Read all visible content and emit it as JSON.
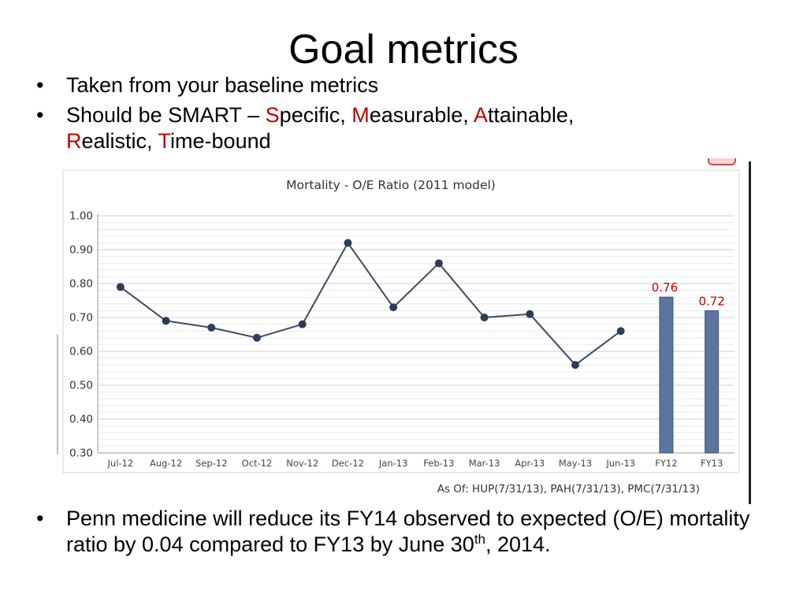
{
  "slide": {
    "title": "Goal metrics",
    "bullet1": "Taken from your baseline metrics",
    "bullet2": {
      "prefix": "Should be SMART – ",
      "s_letter": "S",
      "s_rest": "pecific, ",
      "m_letter": "M",
      "m_rest": "easurable, ",
      "a_letter": "A",
      "a_rest": "ttainable,",
      "r_letter": "R",
      "r_rest": "ealistic, ",
      "t_letter": "T",
      "t_rest": "ime-bound"
    },
    "bullet3": {
      "text": "Penn medicine will reduce its FY14 observed to expected (O/E) mortality ratio by 0.04 compared to FY13 by June 30",
      "sup": "th",
      "tail": ", 2014."
    },
    "accent_color": "#c00000"
  },
  "chart_data": {
    "type": "line",
    "title": "Mortality - O/E Ratio (2011 model)",
    "footnote": "As Of: HUP(7/31/13), PAH(7/31/13), PMC(7/31/13)",
    "categories": [
      "Jul-12",
      "Aug-12",
      "Sep-12",
      "Oct-12",
      "Nov-12",
      "Dec-12",
      "Jan-13",
      "Feb-13",
      "Mar-13",
      "Apr-13",
      "May-13",
      "Jun-13",
      "FY12",
      "FY13"
    ],
    "line_series": {
      "values": [
        0.79,
        0.69,
        0.67,
        0.64,
        0.68,
        0.92,
        0.73,
        0.86,
        0.7,
        0.71,
        0.56,
        0.66
      ],
      "color": "#3b4a66"
    },
    "bar_series": {
      "categories": [
        "FY12",
        "FY13"
      ],
      "values": [
        0.76,
        0.72
      ],
      "labels": [
        "0.76",
        "0.72"
      ],
      "color": "#5b74a0",
      "label_color": "#c00000"
    },
    "y_ticks": [
      "1.00",
      "0.90",
      "0.80",
      "0.70",
      "0.60",
      "0.50",
      "0.40",
      "0.30"
    ],
    "ylim": [
      0.3,
      1.0
    ],
    "grid": true
  }
}
